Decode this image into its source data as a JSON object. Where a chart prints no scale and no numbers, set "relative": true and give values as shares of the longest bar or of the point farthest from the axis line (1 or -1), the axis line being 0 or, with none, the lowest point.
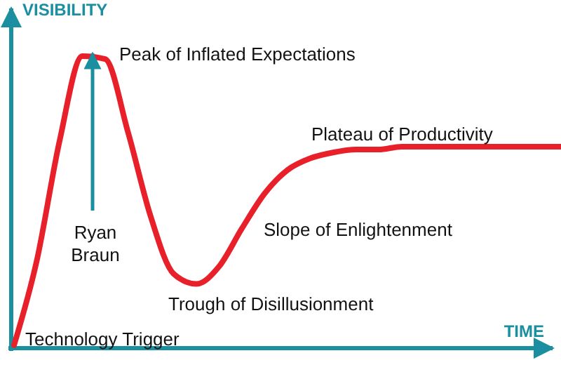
{
  "chart_data": {
    "type": "line",
    "relative": true,
    "xlabel": "TIME",
    "ylabel": "VISIBILITY",
    "categories": [
      null,
      null,
      null,
      null,
      null,
      null,
      null,
      null,
      null,
      null,
      null,
      null,
      null,
      null,
      null,
      null,
      null,
      null,
      null,
      null,
      null,
      null,
      null,
      null,
      null
    ],
    "series": [
      {
        "color": "#e8202a",
        "values": [
          0.01,
          0.3,
          0.71,
          1,
          0.99,
          0.74,
          0.45,
          0.255,
          0.22,
          0.28,
          0.41,
          0.53,
          0.61,
          0.65,
          0.67,
          0.68,
          0.68,
          0.69,
          0.69,
          0.69,
          0.69,
          0.69,
          0.69,
          0.69,
          0.69
        ]
      }
    ],
    "annotations": [
      "Peak of Inflated Expectations",
      "Ryan Braun",
      "Plateau of Productivity",
      "Slope of Enlightenment",
      "Trough of Disillusionment",
      "Technology Trigger"
    ],
    "marker": "none",
    "line_style": "solid"
  }
}
